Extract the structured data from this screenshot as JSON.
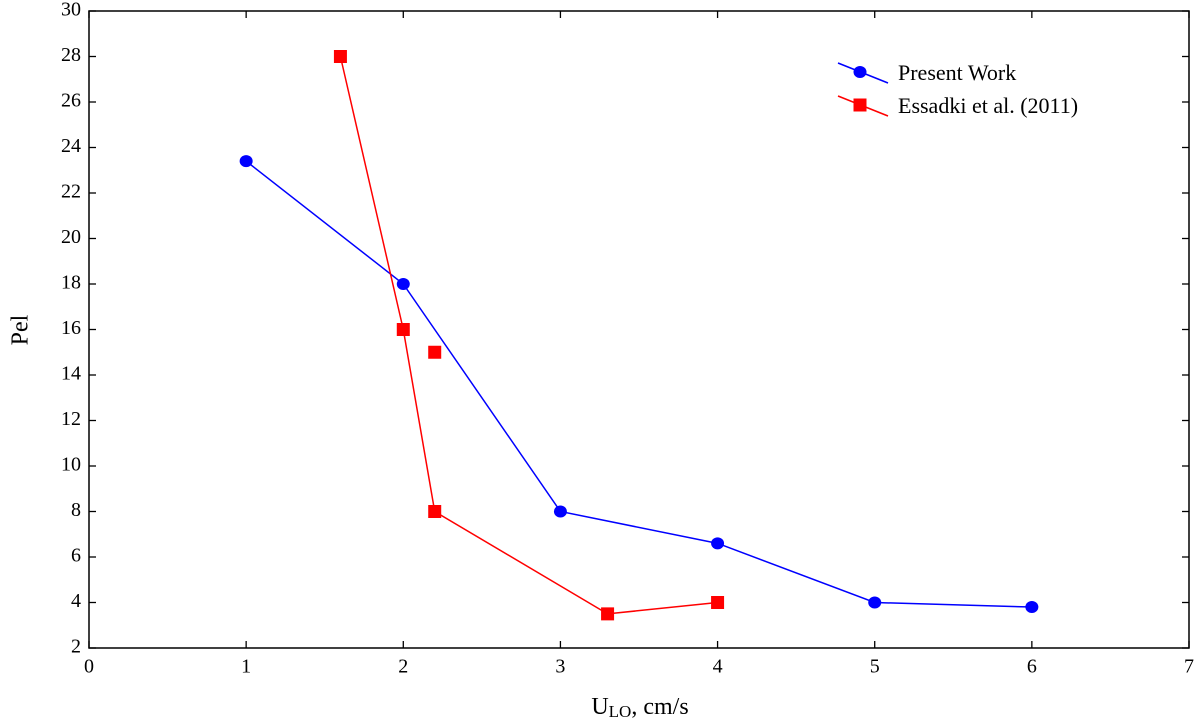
{
  "chart_data": {
    "type": "line",
    "xlabel": {
      "base": "U",
      "sub": "LO",
      "rest": ", cm/s"
    },
    "ylabel": "Pel",
    "xlim": [
      0,
      7
    ],
    "xticks": [
      0,
      1,
      2,
      3,
      4,
      5,
      6,
      7
    ],
    "ylim": [
      2,
      30
    ],
    "yticks": [
      2,
      4,
      6,
      8,
      10,
      12,
      14,
      16,
      18,
      20,
      22,
      24,
      26,
      28,
      30
    ],
    "legend": "upper right",
    "series": [
      {
        "name": "Present Work",
        "color": "#0000ff",
        "marker": "circle",
        "x": [
          1,
          2,
          3,
          4,
          5,
          6
        ],
        "values": [
          23.4,
          18,
          8,
          6.6,
          4,
          3.8
        ]
      },
      {
        "name": "Essadki et al. (2011)",
        "color": "#ff0000",
        "marker": "square",
        "x": [
          1.6,
          2,
          2.2,
          3.3,
          4,
          null,
          2.2
        ],
        "values": [
          28,
          16,
          8,
          3.5,
          4,
          null,
          15
        ]
      }
    ]
  }
}
